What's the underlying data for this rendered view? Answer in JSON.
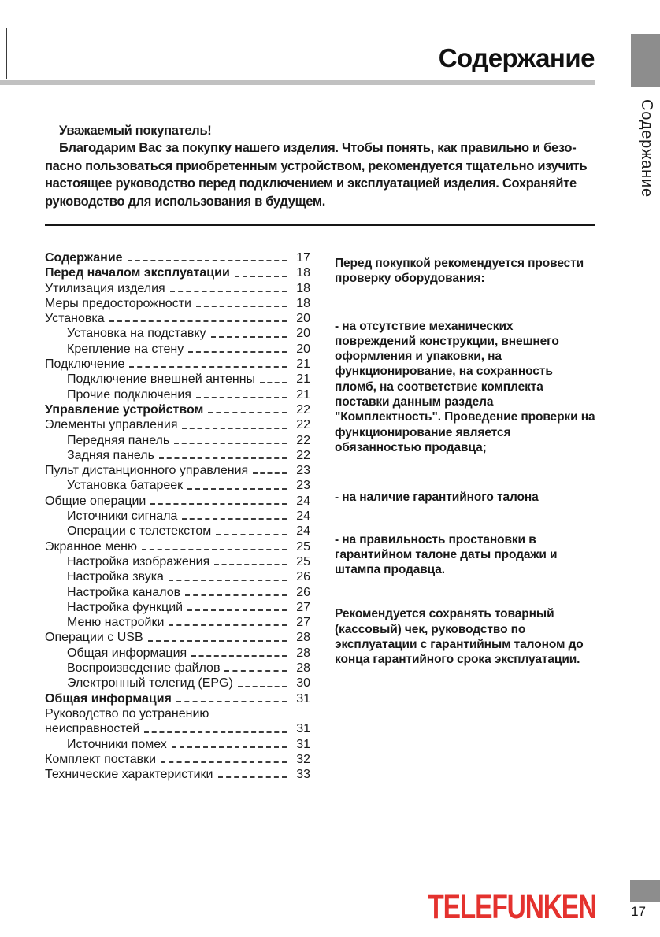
{
  "page": {
    "header_title": "Содержание",
    "side_tab_label": "Содержание",
    "page_number": "17",
    "brand_logo": "TELEFUNKEN"
  },
  "colors": {
    "brand_red": "#e4322e",
    "tab_gray": "#8d8d8d",
    "bar_gray": "#c1c1c1"
  },
  "intro": {
    "greeting": "Уважаемый покупатель!",
    "lines": [
      "Благодарим Вас за покупку нашего изделия. Чтобы понять, как правильно и безо-",
      "пасно пользоваться приобретенным устройством, рекомендуется тщательно изучить",
      "настоящее руководство перед подключением и эксплуатацией изделия. Сохраняйте",
      "руководство для использования в будущем."
    ]
  },
  "toc": {
    "entries": [
      {
        "label": "Содержание",
        "page": "17",
        "indent": 0,
        "bold": true
      },
      {
        "label": "Перед началом эксплуатации",
        "page": "18",
        "indent": 0,
        "bold": true
      },
      {
        "label": "Утилизация изделия",
        "page": "18",
        "indent": 0,
        "bold": false
      },
      {
        "label": "Меры предосторожности",
        "page": "18",
        "indent": 0,
        "bold": false
      },
      {
        "label": "Установка",
        "page": "20",
        "indent": 0,
        "bold": false
      },
      {
        "label": "Установка на подставку",
        "page": "20",
        "indent": 1,
        "bold": false
      },
      {
        "label": "Крепление на стену",
        "page": "20",
        "indent": 1,
        "bold": false
      },
      {
        "label": "Подключение",
        "page": "21",
        "indent": 0,
        "bold": false
      },
      {
        "label": "Подключение внешней антенны",
        "page": "21",
        "indent": 1,
        "bold": false
      },
      {
        "label": "Прочие подключения",
        "page": "21",
        "indent": 1,
        "bold": false
      },
      {
        "label": "Управление устройством",
        "page": "22",
        "indent": 0,
        "bold": true
      },
      {
        "label": "Элементы управления",
        "page": "22",
        "indent": 0,
        "bold": false
      },
      {
        "label": "Передняя панель",
        "page": "22",
        "indent": 1,
        "bold": false
      },
      {
        "label": "Задняя панель",
        "page": "22",
        "indent": 1,
        "bold": false
      },
      {
        "label": "Пульт дистанционного управления",
        "page": "23",
        "indent": 0,
        "bold": false
      },
      {
        "label": "Установка батареек",
        "page": "23",
        "indent": 1,
        "bold": false
      },
      {
        "label": "Общие операции",
        "page": "24",
        "indent": 0,
        "bold": false
      },
      {
        "label": "Источники сигнала",
        "page": "24",
        "indent": 1,
        "bold": false
      },
      {
        "label": "Операции с телетекстом",
        "page": "24",
        "indent": 1,
        "bold": false
      },
      {
        "label": "Экранное меню",
        "page": "25",
        "indent": 0,
        "bold": false
      },
      {
        "label": "Настройка изображения",
        "page": "25",
        "indent": 1,
        "bold": false
      },
      {
        "label": "Настройка звука",
        "page": "26",
        "indent": 1,
        "bold": false
      },
      {
        "label": "Настройка каналов",
        "page": "26",
        "indent": 1,
        "bold": false
      },
      {
        "label": "Настройка функций",
        "page": "27",
        "indent": 1,
        "bold": false
      },
      {
        "label": "Меню настройки",
        "page": "27",
        "indent": 1,
        "bold": false
      },
      {
        "label": "Операции с USB",
        "page": "28",
        "indent": 0,
        "bold": false
      },
      {
        "label": "Общая информация",
        "page": "28",
        "indent": 1,
        "bold": false
      },
      {
        "label": "Воспроизведение файлов",
        "page": "28",
        "indent": 1,
        "bold": false
      },
      {
        "label": "Электронный телегид (EPG)",
        "page": "30",
        "indent": 1,
        "bold": false
      },
      {
        "label": "Общая информация",
        "page": "31",
        "indent": 0,
        "bold": true
      },
      {
        "label": "Руководство по устранению",
        "page": null,
        "indent": 0,
        "bold": false
      },
      {
        "label": "неисправностей",
        "page": "31",
        "indent": 0,
        "bold": false
      },
      {
        "label": "Источники помех",
        "page": "31",
        "indent": 1,
        "bold": false
      },
      {
        "label": "Комплект поставки",
        "page": "32",
        "indent": 0,
        "bold": false
      },
      {
        "label": "Технические характеристики",
        "page": "33",
        "indent": 0,
        "bold": false
      }
    ]
  },
  "notes": {
    "paragraphs": [
      {
        "lines": [
          "Перед покупкой рекомендуется провести",
          "проверку оборудования:"
        ]
      },
      {
        "lines": [
          "- на отсутствие механических",
          "повреждений конструкции, внешнего",
          "оформления и упаковки, на",
          "функционирование, на сохранность",
          "пломб, на соответствие комплекта",
          "поставки данным раздела",
          "\"Комплектность\". Проведение проверки на",
          "функционирование является",
          "обязанностью продавца;"
        ]
      },
      {
        "lines": [
          "- на наличие гарантийного талона"
        ]
      },
      {
        "lines": [
          "- на правильность простановки в",
          "гарантийном талоне даты продажи и",
          "штампа продавца."
        ]
      },
      {
        "lines": [
          "Рекомендуется сохранять товарный",
          "(кассовый) чек, руководство по",
          "эксплуатации с гарантийным талоном до",
          "конца гарантийного срока эксплуатации."
        ]
      }
    ]
  }
}
